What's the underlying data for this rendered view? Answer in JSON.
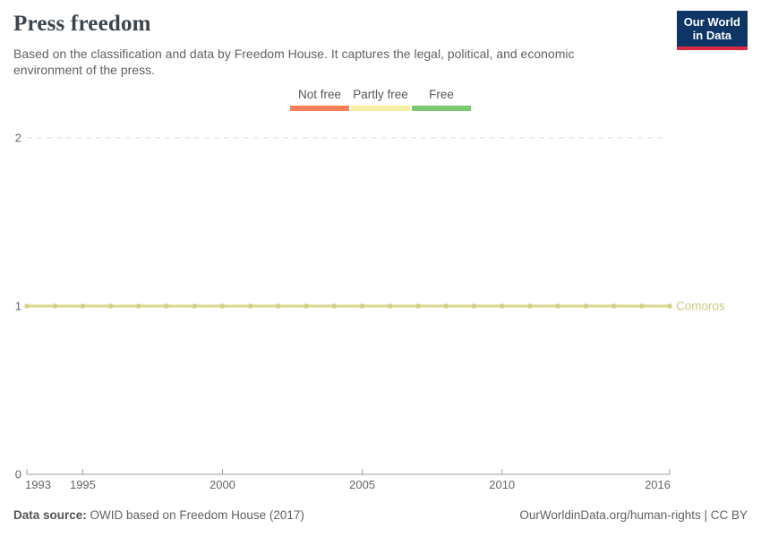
{
  "header": {
    "title": "Press freedom",
    "subtitle": "Based on the classification and data by Freedom House. It captures the legal, political, and economic environment of the press.",
    "logo": {
      "line1": "Our World",
      "line2": "in Data",
      "navy": "#0d3566",
      "red": "#dc2840"
    }
  },
  "legend": {
    "items": [
      {
        "label": "Not free",
        "color": "#f8815a"
      },
      {
        "label": "Partly free",
        "color": "#f6efa2"
      },
      {
        "label": "Free",
        "color": "#7bc871"
      }
    ]
  },
  "chart_data": {
    "type": "line",
    "title": "Press freedom",
    "xlabel": "",
    "ylabel": "",
    "xlim": [
      1993,
      2016
    ],
    "ylim": [
      0,
      2
    ],
    "xticks": [
      1993,
      1995,
      2000,
      2005,
      2010,
      2016
    ],
    "yticks": [
      0,
      1,
      2
    ],
    "grid": "horizontal-dashed",
    "legend_position": "top-center",
    "series": [
      {
        "name": "Comoros",
        "line_color": "#dcd992",
        "point_color": "#d1d083",
        "label_color": "#c8c87b",
        "x": [
          1993,
          1994,
          1995,
          1996,
          1997,
          1998,
          1999,
          2000,
          2001,
          2002,
          2003,
          2004,
          2005,
          2006,
          2007,
          2008,
          2009,
          2010,
          2011,
          2012,
          2013,
          2014,
          2015,
          2016
        ],
        "values": [
          1,
          1,
          1,
          1,
          1,
          1,
          1,
          1,
          1,
          1,
          1,
          1,
          1,
          1,
          1,
          1,
          1,
          1,
          1,
          1,
          1,
          1,
          1,
          1
        ]
      }
    ],
    "axis_color": "#9e9e9e",
    "grid_color": "#d9d9d9",
    "tick_label_color": "#666666"
  },
  "footer": {
    "source_label": "Data source:",
    "source_text": " OWID based on Freedom House (2017)",
    "right_text": "OurWorldinData.org/human-rights | CC BY"
  }
}
